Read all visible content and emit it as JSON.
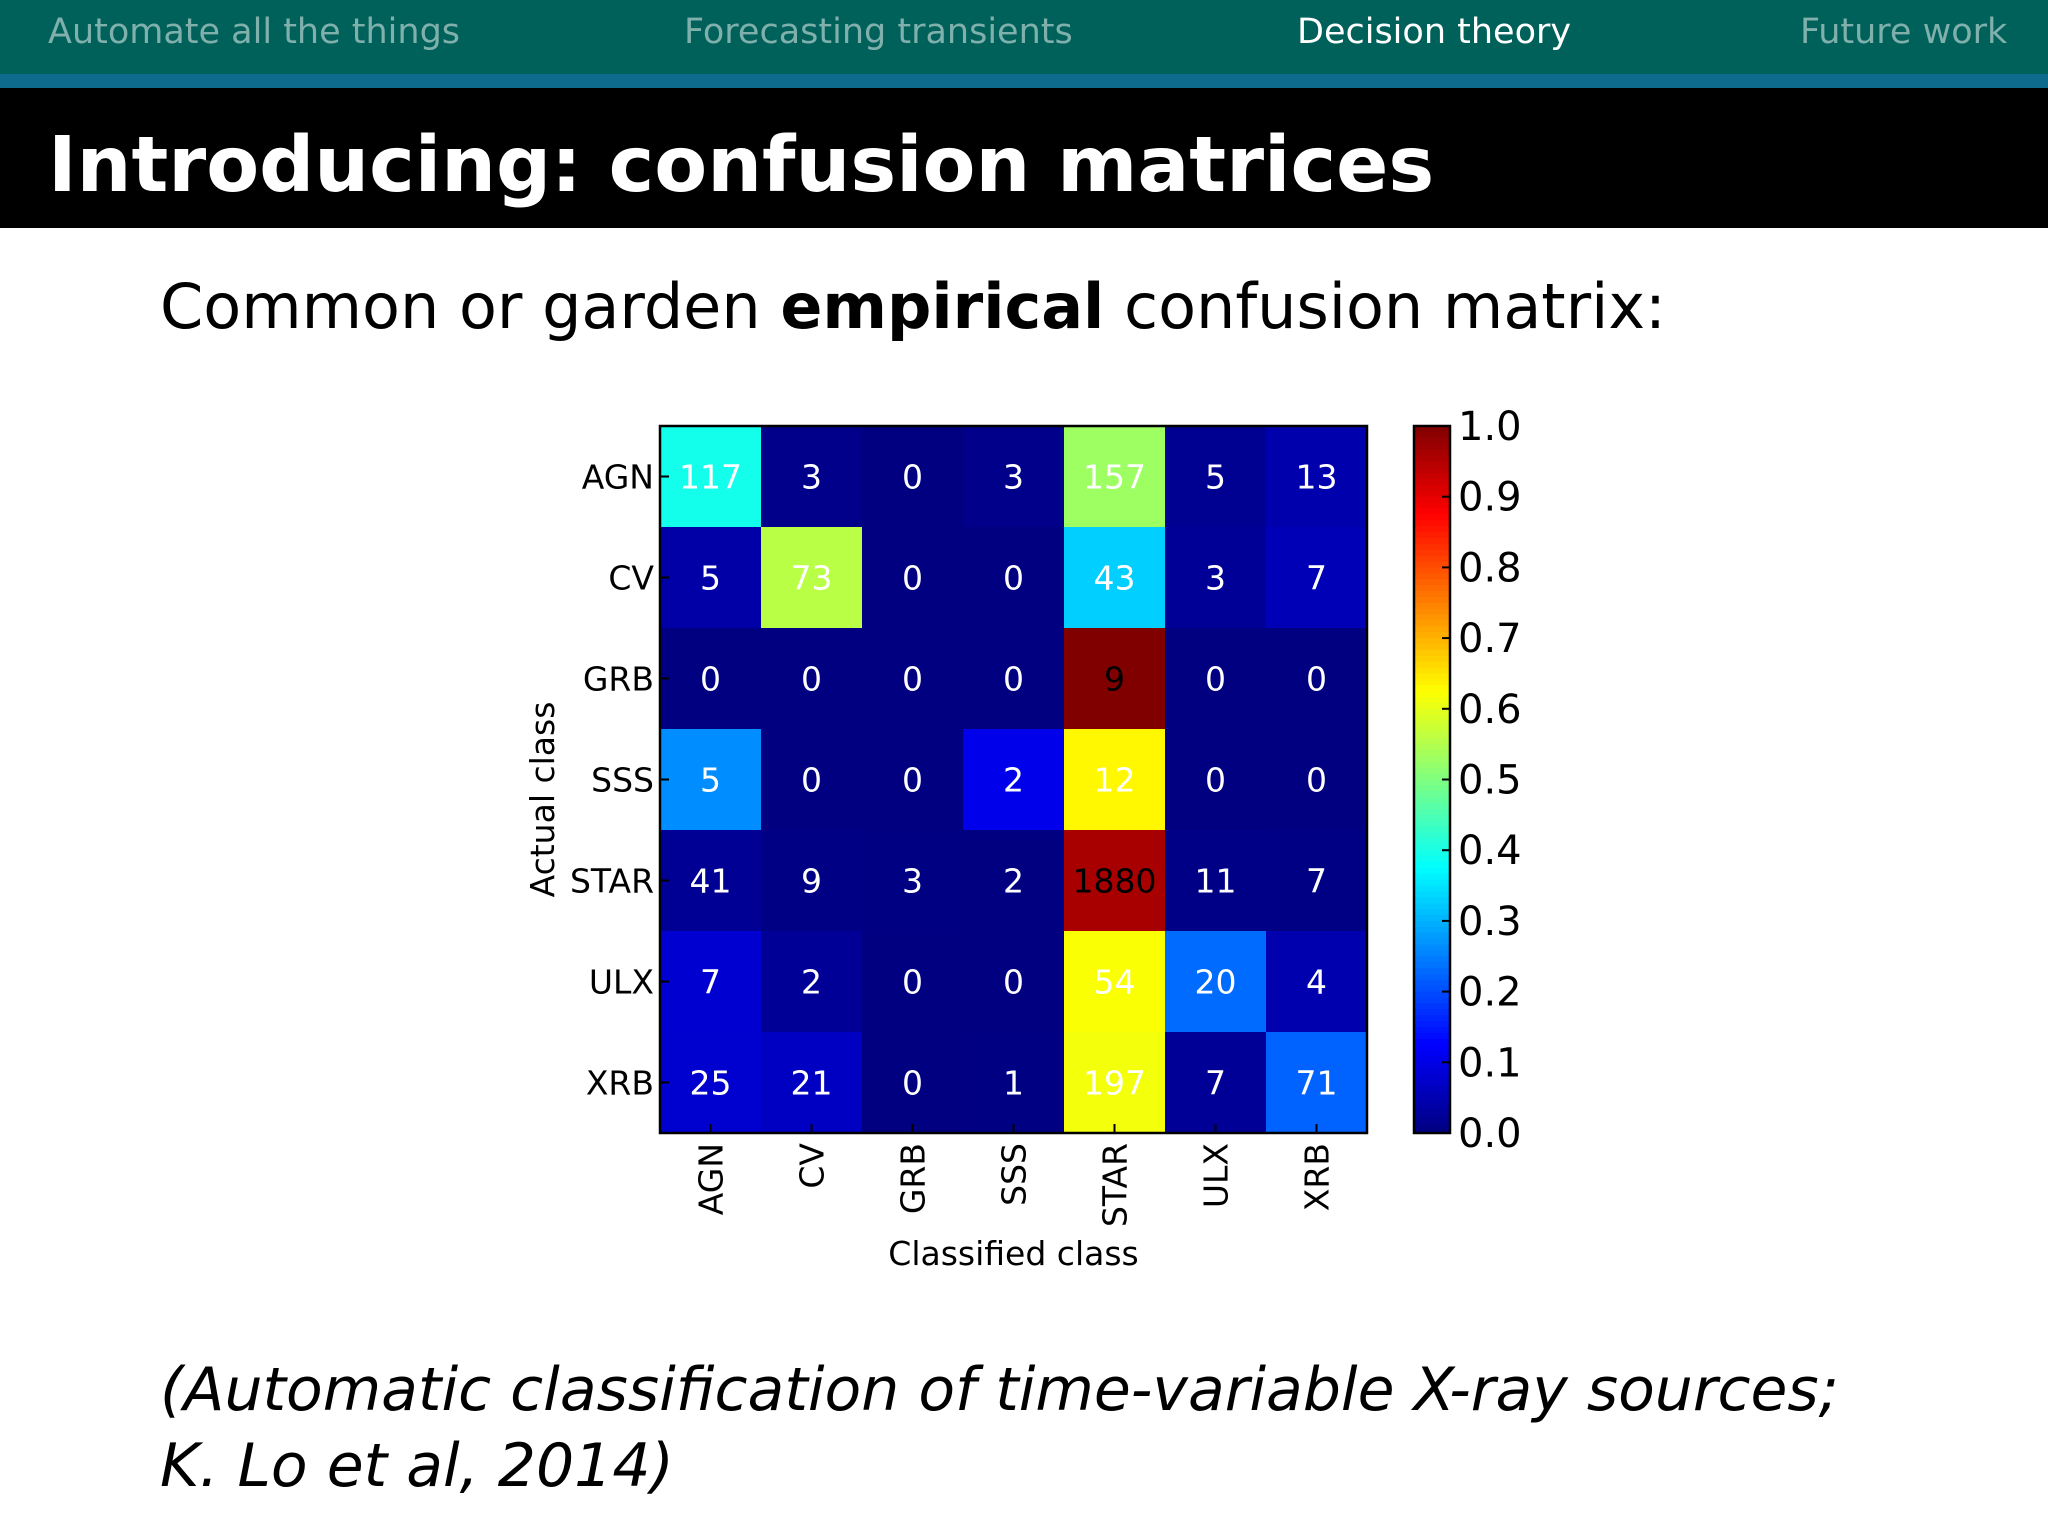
{
  "nav": {
    "items": [
      {
        "label": "Automate all the things",
        "active": false
      },
      {
        "label": "Forecasting transients",
        "active": false
      },
      {
        "label": "Decision theory",
        "active": true
      },
      {
        "label": "Future work",
        "active": false
      }
    ]
  },
  "slide": {
    "title": "Introducing: confusion matrices",
    "lead_pre": "Common or garden ",
    "lead_bold": "empirical",
    "lead_post": " confusion matrix:",
    "citation_line1": "(Automatic classification of time-variable X-ray sources;",
    "citation_line2": "K. Lo et al, 2014)"
  },
  "colors": {
    "nav_bg": "#00605a",
    "nav_text": "#7fb0ac",
    "nav_active": "#ffffff",
    "accent_bar": "#0f6b8e",
    "title_bg": "#000000",
    "colormap": "jet"
  },
  "chart_data": {
    "type": "heatmap",
    "rows": [
      "AGN",
      "CV",
      "GRB",
      "SSS",
      "STAR",
      "ULX",
      "XRB"
    ],
    "columns": [
      "AGN",
      "CV",
      "GRB",
      "SSS",
      "STAR",
      "ULX",
      "XRB"
    ],
    "values": [
      [
        117,
        3,
        0,
        3,
        157,
        5,
        13
      ],
      [
        5,
        73,
        0,
        0,
        43,
        3,
        7
      ],
      [
        0,
        0,
        0,
        0,
        9,
        0,
        0
      ],
      [
        5,
        0,
        0,
        2,
        12,
        0,
        0
      ],
      [
        41,
        9,
        3,
        2,
        1880,
        11,
        7
      ],
      [
        7,
        2,
        0,
        0,
        54,
        20,
        4
      ],
      [
        25,
        21,
        0,
        1,
        197,
        7,
        71
      ]
    ],
    "color_fraction": [
      [
        0.394,
        0.01,
        0.0,
        0.01,
        0.529,
        0.017,
        0.044
      ],
      [
        0.038,
        0.556,
        0.0,
        0.0,
        0.328,
        0.023,
        0.053
      ],
      [
        0.0,
        0.0,
        0.0,
        0.0,
        1.0,
        0.0,
        0.0
      ],
      [
        0.263,
        0.0,
        0.0,
        0.105,
        0.632,
        0.0,
        0.0
      ],
      [
        0.021,
        0.005,
        0.002,
        0.001,
        0.96,
        0.006,
        0.004
      ],
      [
        0.08,
        0.023,
        0.0,
        0.0,
        0.621,
        0.23,
        0.046
      ],
      [
        0.078,
        0.066,
        0.0,
        0.003,
        0.614,
        0.022,
        0.221
      ]
    ],
    "xlabel": "Classified class",
    "ylabel": "Actual class",
    "colorbar": {
      "range": [
        0.0,
        1.0
      ],
      "ticks": [
        "0.0",
        "0.1",
        "0.2",
        "0.3",
        "0.4",
        "0.5",
        "0.6",
        "0.7",
        "0.8",
        "0.9",
        "1.0"
      ]
    }
  }
}
